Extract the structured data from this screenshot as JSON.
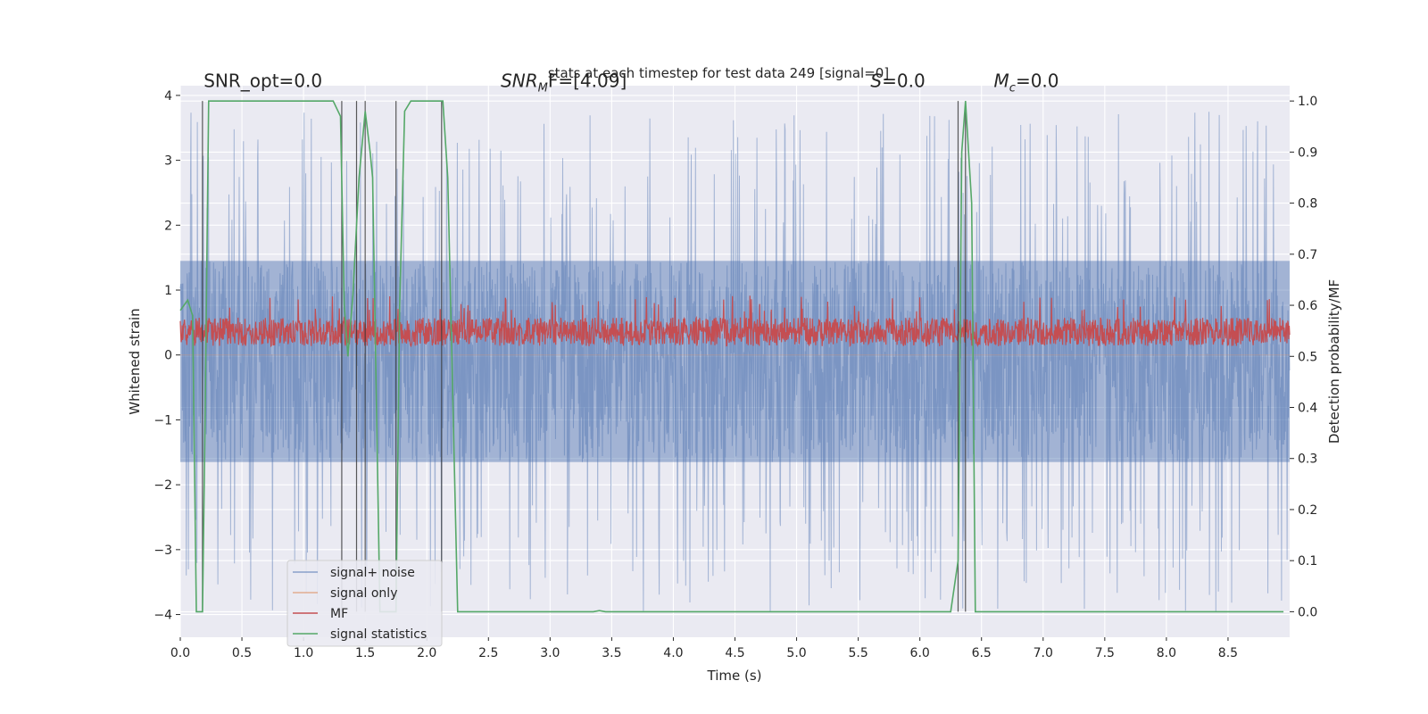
{
  "chart_data": {
    "type": "line",
    "title": "stats at each timestep for test data 249 [signal=0]",
    "xlabel": "Time (s)",
    "ylabel_left": "Whitened strain",
    "ylabel_right": "Detection probability/MF",
    "xlim": [
      0,
      9
    ],
    "ylim_left": [
      -4.35,
      4.15
    ],
    "ylim_right": [
      -0.05,
      1.03
    ],
    "x_ticks": [
      0.0,
      0.5,
      1.0,
      1.5,
      2.0,
      2.5,
      3.0,
      3.5,
      4.0,
      4.5,
      5.0,
      5.5,
      6.0,
      6.5,
      7.0,
      7.5,
      8.0,
      8.5
    ],
    "x_tick_labels": [
      "0.0",
      "0.5",
      "1.0",
      "1.5",
      "2.0",
      "2.5",
      "3.0",
      "3.5",
      "4.0",
      "4.5",
      "5.0",
      "5.5",
      "6.0",
      "6.5",
      "7.0",
      "7.5",
      "8.0",
      "8.5"
    ],
    "y_ticks_left": [
      4,
      3,
      2,
      1,
      0,
      -1,
      -2,
      -3,
      -4
    ],
    "y_tick_labels_left": [
      "4",
      "3",
      "2",
      "1",
      "0",
      "−1",
      "−2",
      "−3",
      "−4"
    ],
    "y_ticks_right": [
      1.0,
      0.9,
      0.8,
      0.7,
      0.6,
      0.5,
      0.4,
      0.3,
      0.2,
      0.1,
      0.0
    ],
    "y_tick_labels_right": [
      "1.0",
      "0.9",
      "0.8",
      "0.7",
      "0.6",
      "0.5",
      "0.4",
      "0.3",
      "0.2",
      "0.1",
      "0.0"
    ],
    "grid": true,
    "legend_position": "lower-left",
    "annotations": [
      {
        "name": "snr-opt",
        "prefix": "SNR_opt=0.0",
        "sub": "",
        "suffix": "",
        "italic": false,
        "x": 0.19,
        "y": 1.04
      },
      {
        "name": "snr-mf",
        "prefix": "SNR",
        "sub": "M",
        "suffix": "F=[4.09]",
        "italic": true,
        "x": 2.6,
        "y": 1.04
      },
      {
        "name": "s-value",
        "prefix": "S",
        "sub": "",
        "suffix": "=0.0",
        "italic": true,
        "x": 5.6,
        "y": 1.04
      },
      {
        "name": "mc-value",
        "prefix": "M",
        "sub": "c",
        "suffix": "=0.0",
        "italic": true,
        "x": 6.6,
        "y": 1.04
      }
    ],
    "vertical_lines_x": [
      0.18,
      1.31,
      1.43,
      1.5,
      1.75,
      2.12,
      6.31,
      6.37
    ],
    "series": [
      {
        "name": "signal+ noise",
        "color": "#4c72b0",
        "axis": "left",
        "kind": "noise-band",
        "t_start": 0.0,
        "t_end": 9.0,
        "band_center": -0.1,
        "band_half_width": 1.55,
        "peak_max": 3.75,
        "peak_min": -4.0
      },
      {
        "name": "signal only",
        "color": "#dd8452",
        "axis": "left",
        "kind": "flat",
        "value": 0.0
      },
      {
        "name": "MF",
        "color": "#c44e52",
        "axis": "right",
        "kind": "noise-band",
        "t_start": 0.0,
        "t_end": 9.0,
        "band_center": 0.548,
        "band_half_width": 0.028,
        "peak_max": 0.62,
        "peak_min": 0.525
      },
      {
        "name": "signal statistics",
        "color": "#55a868",
        "axis": "right",
        "kind": "line",
        "x": [
          0.0,
          0.03,
          0.06,
          0.1,
          0.13,
          0.18,
          0.2,
          0.23,
          0.25,
          0.4,
          0.8,
          1.0,
          1.24,
          1.3,
          1.33,
          1.36,
          1.4,
          1.45,
          1.5,
          1.54,
          1.56,
          1.62,
          1.68,
          1.75,
          1.78,
          1.82,
          1.87,
          1.9,
          2.0,
          2.13,
          2.17,
          2.25,
          3.35,
          3.4,
          3.45,
          5.0,
          6.25,
          6.31,
          6.34,
          6.37,
          6.42,
          6.45,
          8.0,
          8.95
        ],
        "y": [
          0.59,
          0.6,
          0.61,
          0.58,
          0.0,
          0.0,
          0.35,
          1.0,
          1.0,
          1.0,
          1.0,
          1.0,
          1.0,
          0.97,
          0.6,
          0.5,
          0.62,
          0.85,
          0.98,
          0.9,
          0.85,
          0.0,
          0.0,
          0.0,
          0.6,
          0.98,
          1.0,
          1.0,
          1.0,
          1.0,
          0.85,
          0.0,
          0.0,
          0.002,
          0.0,
          0.0,
          0.0,
          0.1,
          0.9,
          1.0,
          0.8,
          0.0,
          0.0,
          0.0
        ]
      }
    ]
  }
}
